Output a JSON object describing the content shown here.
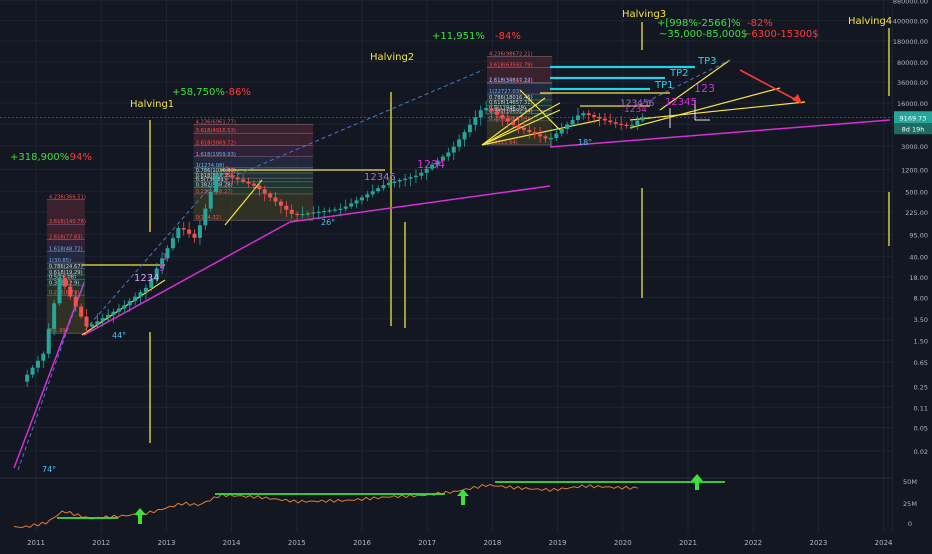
{
  "colors": {
    "background": "#131722",
    "grid": "#1f2433",
    "axis_text": "#b2b5be",
    "bull": "#26a69a",
    "bear": "#ef5350",
    "yellow": "#f5e342",
    "magenta": "#d62fd6",
    "green": "#3ee03e",
    "red": "#ff3b3b",
    "cyan": "#22d3ee",
    "blue_dash": "#4a78c0",
    "price_tag": "#26a69a",
    "volume_line": "#e07b39"
  },
  "chart_data": {
    "type": "line",
    "title": "",
    "xlabel": "",
    "ylabel": "",
    "y_scale": "log",
    "x_ticks": [
      "2011",
      "2012",
      "2013",
      "2014",
      "2015",
      "2016",
      "2017",
      "2018",
      "2019",
      "2020",
      "2021",
      "2022",
      "2023",
      "2024"
    ],
    "y_ticks": [
      "880000.00",
      "400000.00",
      "180000.00",
      "80000.00",
      "36000.00",
      "16000.00",
      "7000.00",
      "3000.00",
      "1200.00",
      "500.00",
      "225.00",
      "95.00",
      "40.00",
      "18.00",
      "8.00",
      "3.50",
      "1.50",
      "0.65",
      "0.25",
      "0.11",
      "0.05",
      "0.02"
    ],
    "last_price": "9169.73",
    "countdown": "8d 19h",
    "series": [
      {
        "values": [
          {
            "date": "2010-11",
            "price": 0.3
          },
          {
            "date": "2011-03",
            "price": 0.9
          },
          {
            "date": "2011-06",
            "price": 18
          },
          {
            "date": "2011-11",
            "price": 2.5
          },
          {
            "date": "2012-06",
            "price": 6
          },
          {
            "date": "2012-10",
            "price": 12
          },
          {
            "date": "2013-04",
            "price": 130
          },
          {
            "date": "2013-07",
            "price": 80
          },
          {
            "date": "2013-11",
            "price": 1100
          },
          {
            "date": "2014-06",
            "price": 620
          },
          {
            "date": "2015-01",
            "price": 200
          },
          {
            "date": "2015-10",
            "price": 260
          },
          {
            "date": "2016-06",
            "price": 680
          },
          {
            "date": "2016-12",
            "price": 960
          },
          {
            "date": "2017-06",
            "price": 2500
          },
          {
            "date": "2017-12",
            "price": 14000
          },
          {
            "date": "2018-06",
            "price": 6300
          },
          {
            "date": "2018-12",
            "price": 3800
          },
          {
            "date": "2019-06",
            "price": 11000
          },
          {
            "date": "2019-12",
            "price": 7200
          },
          {
            "date": "2020-03",
            "price": 6400
          },
          {
            "date": "2020-05",
            "price": 9169.73
          }
        ]
      }
    ],
    "halvings": [
      {
        "label": "Halving1",
        "date": "2012-11"
      },
      {
        "label": "Halving2",
        "date": "2016-07"
      },
      {
        "label": "Halving3",
        "date": "2020-05"
      },
      {
        "label": "Halving4",
        "date": "2024-05"
      }
    ],
    "gain_labels": [
      {
        "text": "+318,900%",
        "drop": "-94%"
      },
      {
        "text": "+58,750%",
        "drop": "-86%"
      },
      {
        "text": "+11,951%",
        "drop": "-84%"
      },
      {
        "text": "+[998%-2566]%",
        "drop": "-82%"
      }
    ],
    "target_texts": [
      "~35,000-85,000$",
      "~6300-15300$"
    ],
    "take_profits": [
      "TP1",
      "TP2",
      "TP3"
    ],
    "count_labels": [
      "1234",
      "5",
      "1",
      "1234",
      "12345",
      "1234",
      "123456",
      "12345",
      "123"
    ],
    "angle_labels": [
      "74°",
      "44°",
      "26°",
      "18°"
    ],
    "fib_labels": [
      {
        "cycle": 1,
        "rows": [
          "4.236(366.51)",
          "3.618(140.76)",
          "2.618(77.63)",
          "1.618(48.72)",
          "1(30.85)",
          "0.786(24.67)",
          "0.618(19.29)",
          "0.5(16.08)",
          "0.382(12.9)",
          "0.236(8.79)",
          "0(1.99)"
        ]
      },
      {
        "cycle": 2,
        "rows": [
          "4.236(6961.77)",
          "3.618(4916.53)",
          "2.618(3069.72)",
          "1.618(1959.93)",
          "1(1274.08)",
          "0.786(1036.33)",
          "0.618(847.35)",
          "0.5(736.81)",
          "0.382(588.28)",
          "0.236(458.27)",
          "0(164.32)"
        ]
      },
      {
        "cycle": 3,
        "rows": [
          "4.236(98672.21)",
          "3.618(63592.79)",
          "2.618(35844.14)",
          "1.618(34617.22)",
          "1(22727.03)",
          "0.786(18016.45)",
          "0.618(14657.31)",
          "0.5(11946.29)",
          "0.382(10652.74)",
          "0.236(7956.64)",
          "0(3115.64)"
        ]
      }
    ],
    "volume_panel": {
      "y_ticks": [
        "50M",
        "25M",
        "0"
      ]
    }
  }
}
